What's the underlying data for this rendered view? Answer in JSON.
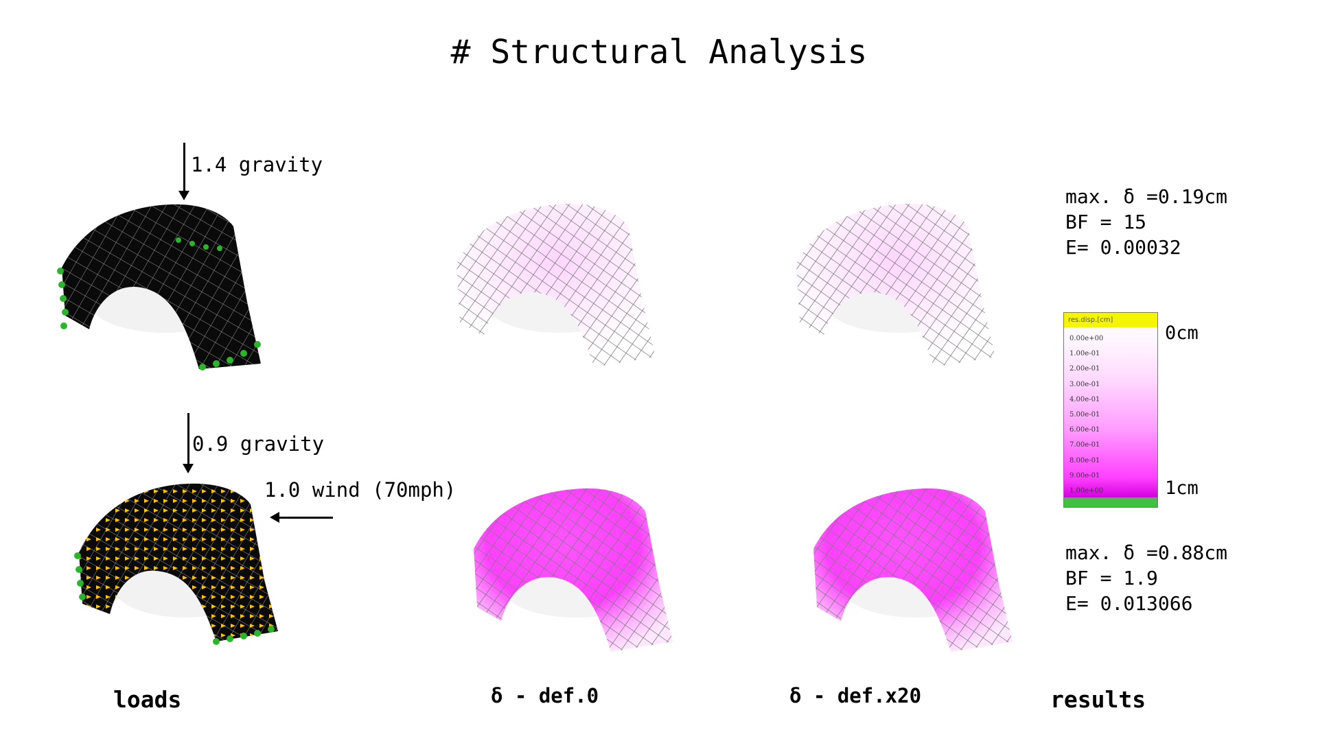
{
  "page": {
    "title": "# Structural Analysis"
  },
  "loads": {
    "gravity_top": "1.4 gravity",
    "gravity_bottom": "0.9 gravity",
    "wind": "1.0 wind (70mph)"
  },
  "captions": {
    "loads": "loads",
    "def0": "δ - def.0",
    "defx20": "δ - def.x20",
    "results": "results"
  },
  "results": {
    "case1": {
      "max_delta": "max. δ =0.19cm",
      "bf": "BF = 15",
      "e": "E= 0.00032"
    },
    "case2": {
      "max_delta": "max. δ =0.88cm",
      "bf": "BF = 1.9",
      "e": "E= 0.013066"
    }
  },
  "legend": {
    "header": "res.disp.[cm]",
    "ticks": [
      "0.00e+00",
      "1.00e-01",
      "2.00e-01",
      "3.00e-01",
      "4.00e-01",
      "5.00e-01",
      "6.00e-01",
      "7.00e-01",
      "8.00e-01",
      "9.00e-01",
      "1.00e+00"
    ],
    "min_label": "0cm",
    "max_label": "1cm"
  },
  "colors": {
    "shell_black": "#0a0a0a",
    "mesh_grey": "#8a8a8a",
    "magenta": "#ff40ff",
    "light_pink": "#ffd6ff",
    "support_green": "#2bb52b",
    "wind_yellow": "#ffc400"
  }
}
